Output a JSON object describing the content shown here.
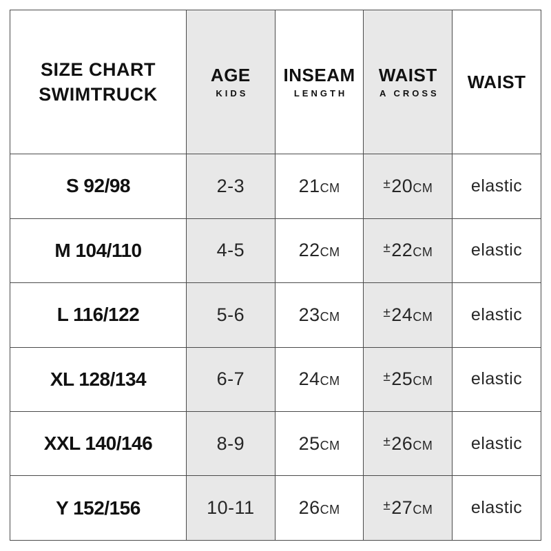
{
  "chart_data": {
    "type": "table",
    "title": "SIZE CHART SWIMTRUCK",
    "header": {
      "size": {
        "line1": "SIZE CHART",
        "line2": "SWIMTRUCK"
      },
      "age": {
        "main": "AGE",
        "sub": "KIDS"
      },
      "inseam": {
        "main": "INSEAM",
        "sub": "LENGTH"
      },
      "waist_across": {
        "main": "WAIST",
        "sub": "A CROSS"
      },
      "waist": {
        "main": "WAIST"
      }
    },
    "unit": "CM",
    "plus_minus_symbol": "±",
    "rows": [
      {
        "size": "S 92/98",
        "age_kids": "2-3",
        "inseam_cm": 21,
        "waist_across_cm": 20,
        "waist": "elastic"
      },
      {
        "size": "M 104/110",
        "age_kids": "4-5",
        "inseam_cm": 22,
        "waist_across_cm": 22,
        "waist": "elastic"
      },
      {
        "size": "L 116/122",
        "age_kids": "5-6",
        "inseam_cm": 23,
        "waist_across_cm": 24,
        "waist": "elastic"
      },
      {
        "size": "XL 128/134",
        "age_kids": "6-7",
        "inseam_cm": 24,
        "waist_across_cm": 25,
        "waist": "elastic"
      },
      {
        "size": "XXL 140/146",
        "age_kids": "8-9",
        "inseam_cm": 25,
        "waist_across_cm": 26,
        "waist": "elastic"
      },
      {
        "size": "Y 152/156",
        "age_kids": "10-11",
        "inseam_cm": 26,
        "waist_across_cm": 27,
        "waist": "elastic"
      }
    ],
    "layout": {
      "shaded_columns": [
        "AGE KIDS",
        "WAIST A CROSS"
      ]
    }
  },
  "colors": {
    "shaded_column_bg": "#e8e8e8",
    "grid_border": "#4a4a4a",
    "text": "#1a1a1a",
    "background": "#ffffff"
  }
}
